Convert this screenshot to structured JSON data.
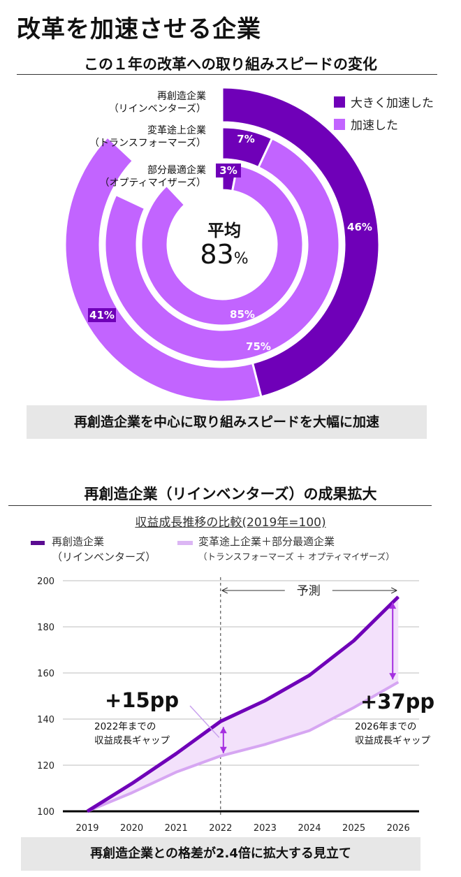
{
  "page": {
    "title": "改革を加速させる企業",
    "section1_title": "この１年の改革への取り組みスピードの変化",
    "section2_title": "再創造企業（リインベンターズ）の成果拡大",
    "banner1": "再創造企業を中心に取り組みスピードを大幅に加速",
    "banner2": "再創造企業との格差が2.4倍に拡大する見立て"
  },
  "donut_legend": {
    "items": [
      {
        "label": "大きく加速した",
        "color": "#6f00b8"
      },
      {
        "label": "加速した",
        "color": "#c264ff"
      }
    ]
  },
  "donut_center": {
    "label": "平均",
    "value": "83",
    "unit": "%"
  },
  "ring_labels": [
    {
      "line1": "再創造企業",
      "line2": "（リインベンターズ）"
    },
    {
      "line1": "変革途上企業",
      "line2": "（トランスフォーマーズ）"
    },
    {
      "line1": "部分最適企業",
      "line2": "（オプティマイザーズ）"
    }
  ],
  "line_legend": {
    "s1": {
      "line1": "再創造企業",
      "line2": "（リインベンターズ）"
    },
    "s2": {
      "line1": "変革途上企業＋部分最適企業",
      "line2": "（トランスフォーマーズ ＋ オプティマイザーズ）"
    }
  },
  "chart_data": [
    {
      "type": "pie",
      "subtype": "concentric-donut",
      "colors": {
        "strong": "#6f00b8",
        "moderate": "#c264ff"
      },
      "series": [
        {
          "name": "再創造企業（リインベンターズ）",
          "strongly_accelerated": 46,
          "accelerated": 41,
          "labels": [
            "46%",
            "41%"
          ]
        },
        {
          "name": "変革途上企業（トランスフォーマーズ）",
          "strongly_accelerated": 7,
          "accelerated": 75,
          "labels": [
            "7%",
            "75%"
          ]
        },
        {
          "name": "部分最適企業（オプティマイザーズ）",
          "strongly_accelerated": 3,
          "accelerated": 85,
          "labels": [
            "3%",
            "85%"
          ]
        }
      ],
      "center": "平均 83%"
    },
    {
      "type": "area",
      "title": "収益成長推移の比較(2019年=100)",
      "x": [
        2019,
        2020,
        2021,
        2022,
        2023,
        2024,
        2025,
        2026
      ],
      "ylim": [
        100,
        200
      ],
      "yticks": [
        100,
        120,
        140,
        160,
        180,
        200
      ],
      "grid": true,
      "forecast_label": "予測",
      "forecast_start": 2022,
      "series": [
        {
          "name": "再創造企業（リインベンターズ）",
          "color": "#6f00b8",
          "values": [
            100,
            112,
            125,
            139,
            148,
            159,
            174,
            193
          ]
        },
        {
          "name": "変革途上企業＋部分最適企業（トランスフォーマーズ ＋ オプティマイザーズ）",
          "color": "#d6a6f2",
          "values": [
            100,
            108,
            117,
            124,
            129,
            135,
            145,
            156
          ]
        }
      ],
      "fill_between_color": "#f3e1fb",
      "annotations": [
        {
          "big": "+15pp",
          "line1": "2022年までの",
          "line2": "収益成長ギャップ",
          "x": 2022
        },
        {
          "big": "+37pp",
          "line1": "2026年までの",
          "line2": "収益成長ギャップ",
          "x": 2026
        }
      ]
    }
  ]
}
